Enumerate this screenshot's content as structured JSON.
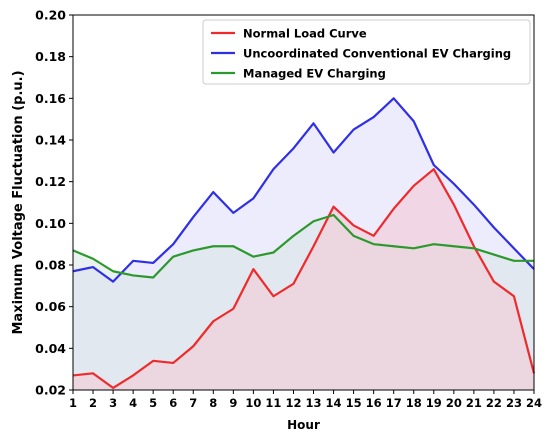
{
  "chart_data": {
    "type": "line",
    "title": "",
    "xlabel": "Hour",
    "ylabel": "Maximum Voltage Fluctuation (p.u.)",
    "xlim": [
      1,
      24
    ],
    "ylim": [
      0.02,
      0.2
    ],
    "x": [
      1,
      2,
      3,
      4,
      5,
      6,
      7,
      8,
      9,
      10,
      11,
      12,
      13,
      14,
      15,
      16,
      17,
      18,
      19,
      20,
      21,
      22,
      23,
      24
    ],
    "x_ticks": [
      "1",
      "2",
      "3",
      "4",
      "5",
      "6",
      "7",
      "8",
      "9",
      "10",
      "11",
      "12",
      "13",
      "14",
      "15",
      "16",
      "17",
      "18",
      "19",
      "20",
      "21",
      "22",
      "23",
      "24"
    ],
    "y_ticks": [
      "0.02",
      "0.04",
      "0.06",
      "0.08",
      "0.10",
      "0.12",
      "0.14",
      "0.16",
      "0.18",
      "0.20"
    ],
    "grid": false,
    "legend_position": "top-right",
    "series": [
      {
        "name": "Normal Load Curve",
        "color": "#ee2a2a",
        "fill": "#f4c6d2",
        "values": [
          0.027,
          0.028,
          0.021,
          0.027,
          0.034,
          0.033,
          0.041,
          0.053,
          0.059,
          0.078,
          0.065,
          0.071,
          0.089,
          0.108,
          0.099,
          0.094,
          0.107,
          0.118,
          0.126,
          0.109,
          0.089,
          0.072,
          0.065,
          0.028
        ]
      },
      {
        "name": "Uncoordinated Conventional EV Charging",
        "color": "#2f2fe6",
        "fill": "#dedcfa",
        "values": [
          0.077,
          0.079,
          0.072,
          0.082,
          0.081,
          0.09,
          0.103,
          0.115,
          0.105,
          0.112,
          0.126,
          0.136,
          0.148,
          0.134,
          0.145,
          0.151,
          0.16,
          0.149,
          0.128,
          0.119,
          0.109,
          0.098,
          0.088,
          0.078
        ]
      },
      {
        "name": "Managed EV Charging",
        "color": "#2c992c",
        "fill": "#d8e6e6",
        "values": [
          0.087,
          0.083,
          0.077,
          0.075,
          0.074,
          0.084,
          0.087,
          0.089,
          0.089,
          0.084,
          0.086,
          0.094,
          0.101,
          0.104,
          0.094,
          0.09,
          0.089,
          0.088,
          0.09,
          0.089,
          0.088,
          0.085,
          0.082,
          0.082
        ]
      }
    ]
  }
}
